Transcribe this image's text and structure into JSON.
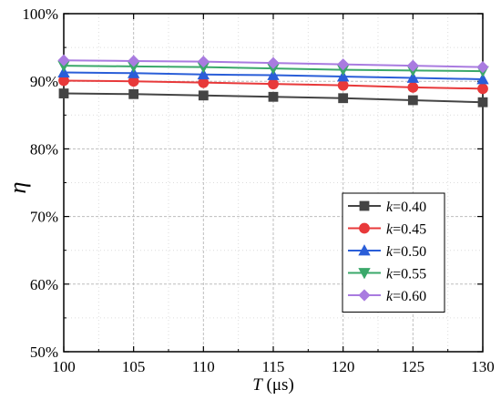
{
  "chart_data": {
    "type": "line",
    "xlabel": {
      "var": "T",
      "unit": " (μs)"
    },
    "ylabel": "η",
    "x": [
      100,
      105,
      110,
      115,
      120,
      125,
      130
    ],
    "xticks": [
      "100",
      "105",
      "110",
      "115",
      "120",
      "125",
      "130"
    ],
    "yticks": [
      "50%",
      "60%",
      "70%",
      "80%",
      "90%",
      "100%"
    ],
    "xlim": [
      100,
      130
    ],
    "ylim": [
      50,
      100
    ],
    "grid": true,
    "legend_position": "lower-right",
    "series": [
      {
        "name": "=0.40",
        "prefix": "k",
        "color": "#444444",
        "marker": "square",
        "values": [
          88.2,
          88.1,
          87.9,
          87.7,
          87.5,
          87.2,
          86.9
        ]
      },
      {
        "name": "=0.45",
        "prefix": "k",
        "color": "#e8393a",
        "marker": "circle",
        "values": [
          90.1,
          90.0,
          89.8,
          89.6,
          89.4,
          89.1,
          88.9
        ]
      },
      {
        "name": "=0.50",
        "prefix": "k",
        "color": "#2a5ed8",
        "marker": "triangle-up",
        "values": [
          91.3,
          91.2,
          91.0,
          90.9,
          90.7,
          90.5,
          90.3
        ]
      },
      {
        "name": "=0.55",
        "prefix": "k",
        "color": "#3aa86a",
        "marker": "triangle-down",
        "values": [
          92.3,
          92.2,
          92.1,
          91.9,
          91.7,
          91.6,
          91.5
        ]
      },
      {
        "name": "=0.60",
        "prefix": "k",
        "color": "#a97be0",
        "marker": "diamond",
        "values": [
          93.1,
          93.0,
          92.9,
          92.7,
          92.5,
          92.3,
          92.1
        ]
      }
    ]
  }
}
